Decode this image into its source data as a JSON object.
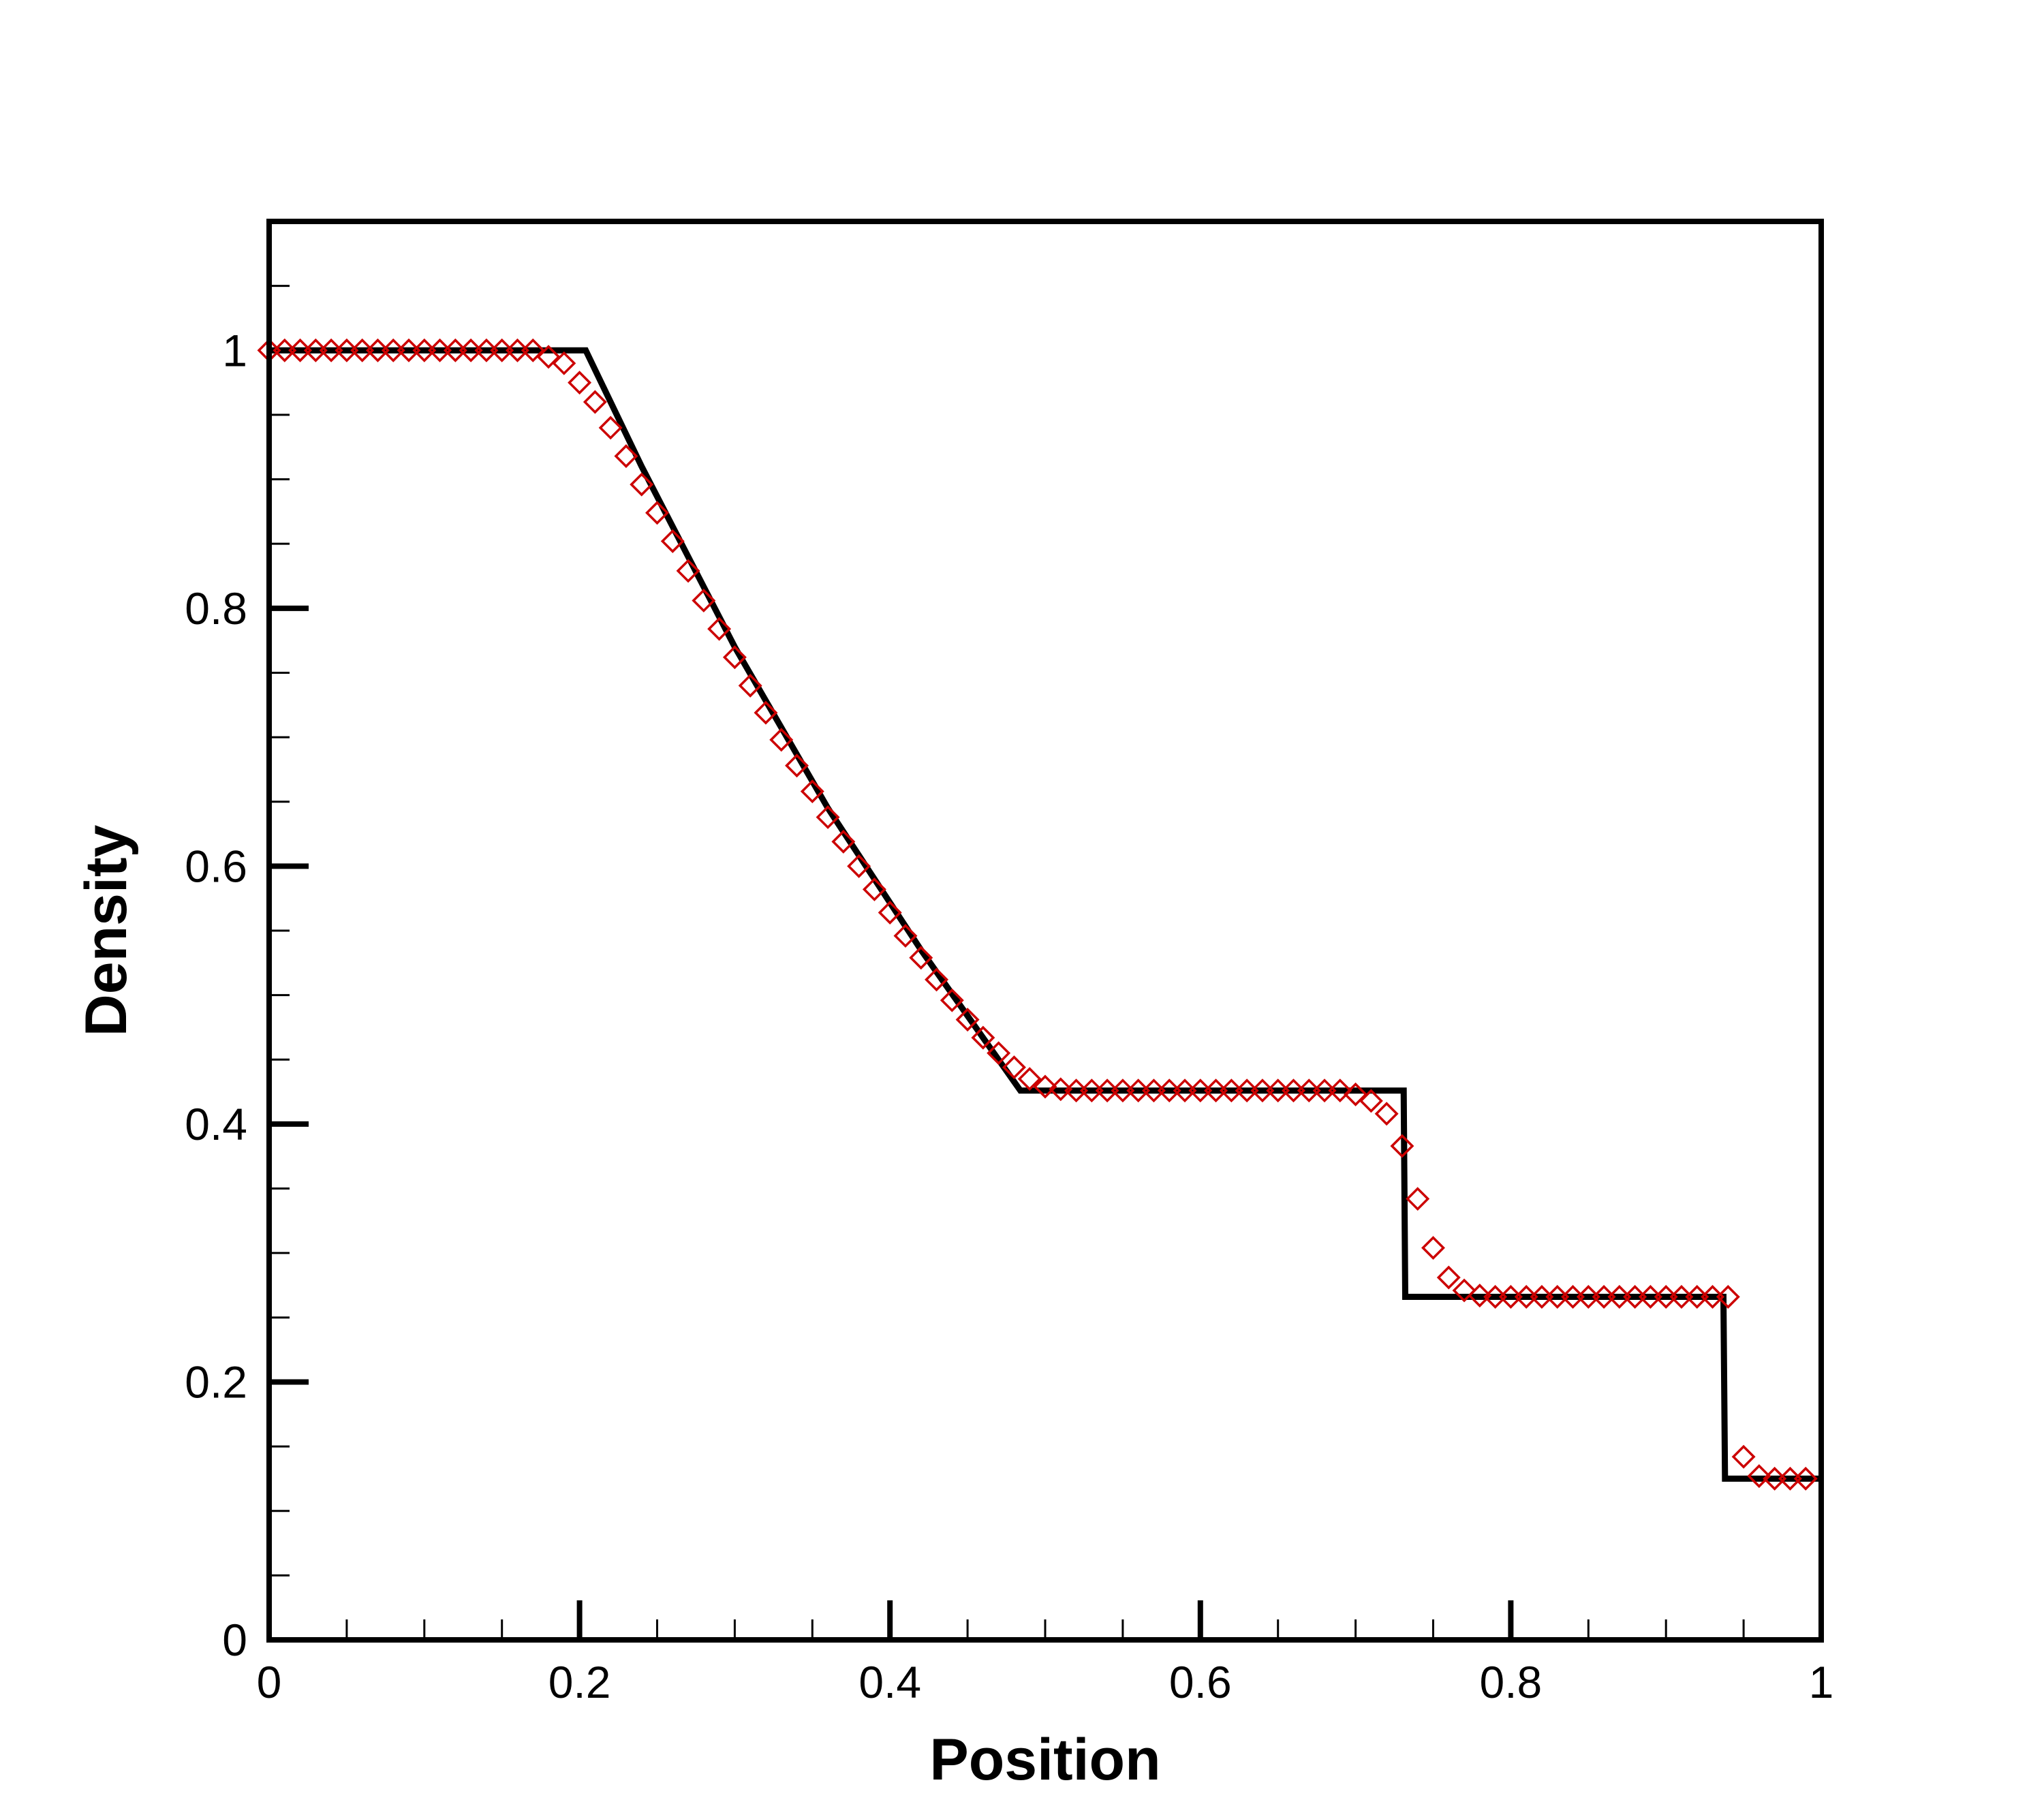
{
  "chart_data": {
    "type": "line",
    "title": "",
    "xlabel": "Position",
    "ylabel": "Density",
    "xlim": [
      0,
      1
    ],
    "ylim": [
      0,
      1.1
    ],
    "grid": false,
    "x_ticks": [
      {
        "value": 0,
        "label": "0"
      },
      {
        "value": 0.2,
        "label": "0.2"
      },
      {
        "value": 0.4,
        "label": "0.4"
      },
      {
        "value": 0.6,
        "label": "0.6"
      },
      {
        "value": 0.8,
        "label": "0.8"
      },
      {
        "value": 1,
        "label": "1"
      }
    ],
    "y_ticks": [
      {
        "value": 0,
        "label": "0"
      },
      {
        "value": 0.2,
        "label": "0.2"
      },
      {
        "value": 0.4,
        "label": "0.4"
      },
      {
        "value": 0.6,
        "label": "0.6"
      },
      {
        "value": 0.8,
        "label": "0.8"
      },
      {
        "value": 1,
        "label": "1"
      }
    ],
    "x_minor_step": 0.05,
    "y_minor_step": 0.05,
    "series": [
      {
        "style": "line",
        "color": "#000000",
        "x": [
          0,
          0.204,
          0.24,
          0.3,
          0.36,
          0.42,
          0.484,
          0.731,
          0.732,
          0.937,
          0.938,
          1.0
        ],
        "y": [
          1.0,
          1.0,
          0.91,
          0.77,
          0.645,
          0.535,
          0.426,
          0.426,
          0.266,
          0.266,
          0.125,
          0.125
        ]
      },
      {
        "style": "marker",
        "marker": "diamond",
        "color": "#cc0000",
        "x": [
          0.0,
          0.01,
          0.02,
          0.03,
          0.04,
          0.05,
          0.06,
          0.07,
          0.08,
          0.09,
          0.1,
          0.11,
          0.12,
          0.13,
          0.14,
          0.15,
          0.16,
          0.17,
          0.18,
          0.19,
          0.2,
          0.21,
          0.22,
          0.23,
          0.24,
          0.25,
          0.26,
          0.27,
          0.28,
          0.29,
          0.3,
          0.31,
          0.32,
          0.33,
          0.34,
          0.35,
          0.36,
          0.37,
          0.38,
          0.39,
          0.4,
          0.41,
          0.42,
          0.43,
          0.44,
          0.45,
          0.46,
          0.47,
          0.48,
          0.49,
          0.5,
          0.51,
          0.52,
          0.53,
          0.54,
          0.55,
          0.56,
          0.57,
          0.58,
          0.59,
          0.6,
          0.61,
          0.62,
          0.63,
          0.64,
          0.65,
          0.66,
          0.67,
          0.68,
          0.69,
          0.7,
          0.71,
          0.72,
          0.73,
          0.74,
          0.75,
          0.76,
          0.77,
          0.78,
          0.79,
          0.8,
          0.81,
          0.82,
          0.83,
          0.84,
          0.85,
          0.86,
          0.87,
          0.88,
          0.89,
          0.9,
          0.91,
          0.92,
          0.93,
          0.94,
          0.95,
          0.96,
          0.97,
          0.98,
          0.99
        ],
        "y": [
          1.0,
          1.0,
          1.0,
          1.0,
          1.0,
          1.0,
          1.0,
          1.0,
          1.0,
          1.0,
          1.0,
          1.0,
          1.0,
          1.0,
          1.0,
          1.0,
          1.0,
          1.0,
          0.995,
          0.99,
          0.975,
          0.96,
          0.94,
          0.918,
          0.896,
          0.874,
          0.852,
          0.829,
          0.806,
          0.784,
          0.762,
          0.74,
          0.719,
          0.698,
          0.678,
          0.658,
          0.638,
          0.619,
          0.6,
          0.582,
          0.564,
          0.546,
          0.529,
          0.512,
          0.496,
          0.481,
          0.467,
          0.455,
          0.444,
          0.435,
          0.429,
          0.427,
          0.426,
          0.426,
          0.426,
          0.426,
          0.426,
          0.426,
          0.426,
          0.426,
          0.426,
          0.426,
          0.426,
          0.426,
          0.426,
          0.426,
          0.426,
          0.426,
          0.426,
          0.426,
          0.423,
          0.418,
          0.408,
          0.383,
          0.342,
          0.304,
          0.281,
          0.271,
          0.267,
          0.266,
          0.266,
          0.266,
          0.266,
          0.266,
          0.266,
          0.266,
          0.266,
          0.266,
          0.266,
          0.266,
          0.266,
          0.266,
          0.266,
          0.266,
          0.266,
          0.142,
          0.127,
          0.125,
          0.125,
          0.125
        ]
      }
    ]
  }
}
